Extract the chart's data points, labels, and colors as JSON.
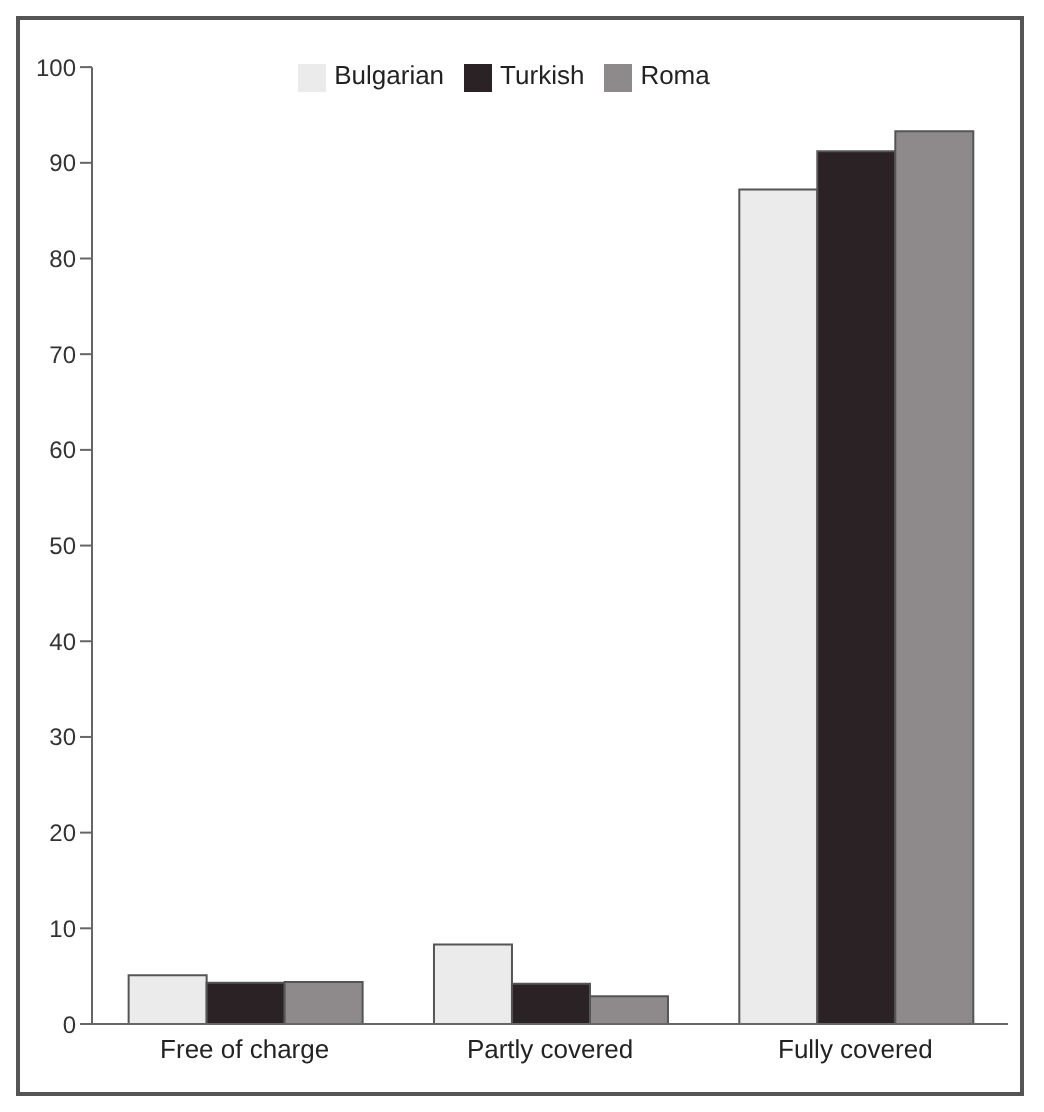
{
  "chart_data": {
    "type": "bar",
    "categories": [
      "Free of charge",
      "Partly covered",
      "Fully covered"
    ],
    "series": [
      {
        "name": "Bulgarian",
        "color": "#ebebeb",
        "values": [
          5.1,
          8.3,
          87.2
        ]
      },
      {
        "name": "Turkish",
        "color": "#2a2224",
        "values": [
          4.3,
          4.2,
          91.2
        ]
      },
      {
        "name": "Roma",
        "color": "#8e8a8c",
        "values": [
          4.4,
          2.9,
          93.3
        ]
      }
    ],
    "ylim": [
      0,
      100
    ],
    "yticks": [
      0,
      10,
      20,
      30,
      40,
      50,
      60,
      70,
      80,
      90,
      100
    ],
    "grid": false,
    "legend": "top"
  }
}
